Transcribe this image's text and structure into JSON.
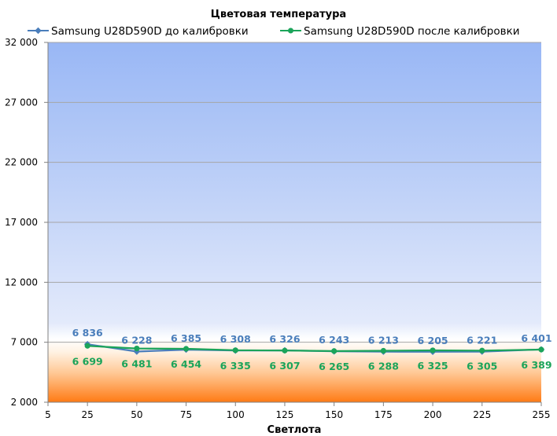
{
  "chart_data": {
    "type": "line",
    "title": "Цветовая температура",
    "xlabel": "Светлота",
    "ylabel": "",
    "x": [
      25,
      50,
      75,
      100,
      125,
      150,
      175,
      200,
      225,
      255
    ],
    "x_ticks": [
      5,
      25,
      50,
      75,
      100,
      125,
      150,
      175,
      200,
      225,
      255
    ],
    "xlim": [
      5,
      255
    ],
    "y_ticks": [
      2000,
      7000,
      12000,
      17000,
      22000,
      27000,
      32000
    ],
    "y_tick_labels": [
      "2 000",
      "7 000",
      "12 000",
      "17 000",
      "22 000",
      "27 000",
      "32 000"
    ],
    "ylim": [
      2000,
      32000
    ],
    "grid": "horizontal",
    "legend_position": "top",
    "series": [
      {
        "name": "Samsung U28D590D до калибровки",
        "color": "#4a7ebb",
        "marker": "diamond",
        "values": [
          6836,
          6228,
          6385,
          6308,
          6326,
          6243,
          6213,
          6205,
          6221,
          6401
        ],
        "labels": [
          "6 836",
          "6 228",
          "6 385",
          "6 308",
          "6 326",
          "6 243",
          "6 213",
          "6 205",
          "6 221",
          "6 401"
        ]
      },
      {
        "name": "Samsung U28D590D после калибровки",
        "color": "#1ba45a",
        "marker": "circle",
        "values": [
          6699,
          6481,
          6454,
          6335,
          6307,
          6265,
          6288,
          6325,
          6305,
          6389
        ],
        "labels": [
          "6 699",
          "6 481",
          "6 454",
          "6 335",
          "6 307",
          "6 265",
          "6 288",
          "6 325",
          "6 305",
          "6 389"
        ]
      }
    ]
  }
}
